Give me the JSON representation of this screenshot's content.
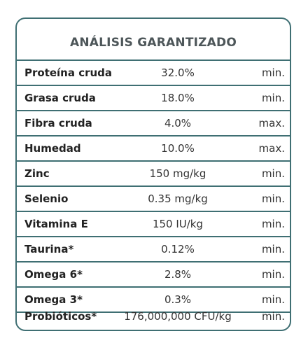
{
  "title": "ANÁLISIS GARANTIZADO",
  "rows": [
    {
      "name": "Proteína cruda",
      "value": "32.0%",
      "unit": "min."
    },
    {
      "name": "Grasa cruda",
      "value": "18.0%",
      "unit": "min."
    },
    {
      "name": "Fibra cruda",
      "value": "4.0%",
      "unit": "max."
    },
    {
      "name": "Humedad",
      "value": "10.0%",
      "unit": "max."
    },
    {
      "name": "Zinc",
      "value": "150 mg/kg",
      "unit": "min."
    },
    {
      "name": "Selenio",
      "value": "0.35 mg/kg",
      "unit": "min."
    },
    {
      "name": "Vitamina E",
      "value": "150 IU/kg",
      "unit": "min."
    },
    {
      "name": "Taurina*",
      "value": "0.12%",
      "unit": "min."
    },
    {
      "name": "Omega 6*",
      "value": "2.8%",
      "unit": "min."
    },
    {
      "name": "Omega 3*",
      "value": "0.3%",
      "unit": "min."
    },
    {
      "name": "Probióticos*",
      "value": "176,000,000 CFU/kg",
      "unit": "min."
    }
  ],
  "colors": {
    "border": "#3f6f73",
    "title": "#4d5659"
  }
}
